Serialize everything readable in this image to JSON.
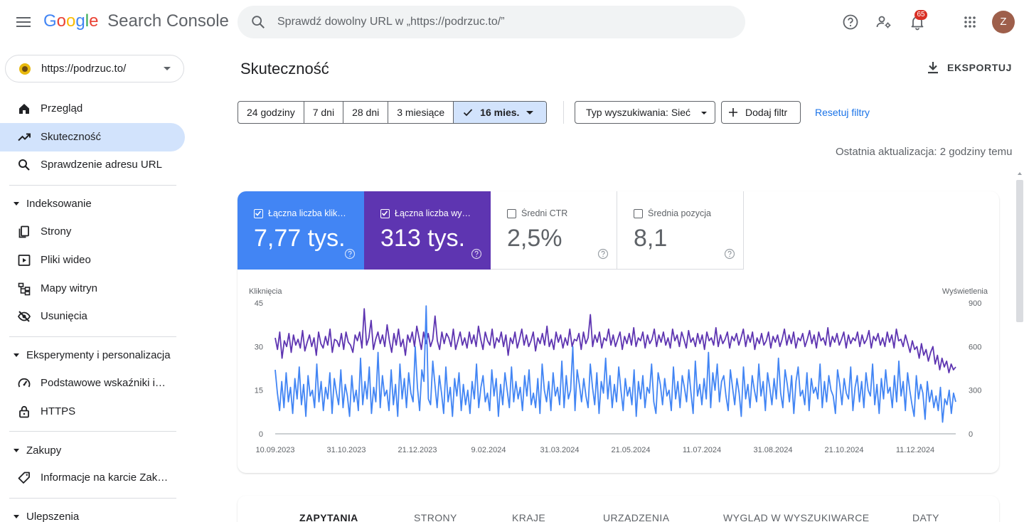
{
  "header": {
    "brand": [
      "G",
      "o",
      "o",
      "g",
      "l",
      "e"
    ],
    "brand_colors": [
      "#4285f4",
      "#ea4335",
      "#fbbc05",
      "#4285f4",
      "#34a853",
      "#ea4335"
    ],
    "product": "Search Console",
    "search_placeholder": "Sprawdź dowolny URL w „https://podrzuc.to/”",
    "notification_count": "65",
    "avatar_initial": "Z",
    "icons": [
      "menu-icon",
      "search-icon",
      "help-icon",
      "manage-users-icon",
      "notifications-icon",
      "apps-grid-icon"
    ]
  },
  "sidebar": {
    "property": "https://podrzuc.to/",
    "items": {
      "overview": "Przegląd",
      "performance": "Skuteczność",
      "url_inspection": "Sprawdzenie adresu URL",
      "indexing": "Indeksowanie",
      "pages": "Strony",
      "videos": "Pliki wideo",
      "sitemaps": "Mapy witryn",
      "removals": "Usunięcia",
      "experience": "Eksperymenty i personalizacja",
      "cwv": "Podstawowe wskaźniki internetowe",
      "https": "HTTPS",
      "shopping": "Zakupy",
      "merchant": "Informacje na karcie Zakupów",
      "enhancements": "Ulepszenia"
    }
  },
  "main": {
    "title": "Skuteczność",
    "export_label": "EKSPORTUJ",
    "date_ranges": [
      "24 godziny",
      "7 dni",
      "28 dni",
      "3 miesiące"
    ],
    "selected_range": "16 mies.",
    "search_type": "Typ wyszukiwania: Sieć",
    "add_filter": "Dodaj filtr",
    "reset_filters": "Resetuj filtry",
    "last_update": "Ostatnia aktualizacja: 2 godziny temu",
    "metrics": [
      {
        "label": "Łączna liczba kliknięć",
        "value": "7,77 tys.",
        "color": "#4285f4",
        "checked": true
      },
      {
        "label": "Łączna liczba wyświetleń",
        "value": "313 tys.",
        "color": "#5e35b1",
        "checked": true
      },
      {
        "label": "Średni CTR",
        "value": "2,5%",
        "color": "#ffffff",
        "checked": false
      },
      {
        "label": "Średnia pozycja",
        "value": "8,1",
        "color": "#ffffff",
        "checked": false
      }
    ],
    "tabs": [
      "ZAPYTANIA",
      "STRONY",
      "KRAJE",
      "URZĄDZENIA",
      "WYGLĄD W WYSZUKIWARCE",
      "DATY"
    ],
    "active_tab": "ZAPYTANIA"
  },
  "chart_data": {
    "type": "line",
    "left_axis_title": "Kliknięcia",
    "right_axis_title": "Wyświetlenia",
    "left_ticks": [
      "45",
      "30",
      "15",
      "0"
    ],
    "right_ticks": [
      "900",
      "600",
      "300",
      "0"
    ],
    "ylim_left": [
      0,
      45
    ],
    "ylim_right": [
      0,
      900
    ],
    "x_labels": [
      "10.09.2023",
      "31.10.2023",
      "21.12.2023",
      "9.02.2024",
      "31.03.2024",
      "21.05.2024",
      "11.07.2024",
      "31.08.2024",
      "21.10.2024",
      "11.12.2024"
    ],
    "series": [
      {
        "name": "Kliknięcia",
        "axis": "left",
        "color": "#4285f4",
        "values": [
          22,
          14,
          8,
          18,
          9,
          21,
          11,
          16,
          7,
          19,
          12,
          23,
          10,
          17,
          6,
          20,
          13,
          15,
          9,
          24,
          11,
          18,
          8,
          16,
          12,
          21,
          7,
          19,
          14,
          10,
          22,
          9,
          17,
          13,
          6,
          20,
          11,
          15,
          8,
          26,
          10,
          18,
          12,
          23,
          7,
          16,
          11,
          28,
          9,
          20,
          13,
          15,
          8,
          22,
          10,
          17,
          6,
          24,
          12,
          19,
          9,
          21,
          14,
          11,
          30,
          16,
          8,
          22,
          18,
          44,
          12,
          10,
          25,
          17,
          9,
          20,
          14,
          7,
          23,
          11,
          16,
          6,
          19,
          13,
          21,
          8,
          17,
          10,
          15,
          7,
          18,
          12,
          24,
          9,
          16,
          20,
          11,
          14,
          8,
          22,
          13,
          19,
          6,
          17,
          10,
          21,
          15,
          9,
          23,
          11,
          18,
          12,
          16,
          8,
          20,
          13,
          22,
          10,
          14,
          9,
          19,
          7,
          24,
          15,
          11,
          18,
          8,
          21,
          13,
          16,
          10,
          25,
          9,
          20,
          12,
          15,
          30,
          8,
          22,
          17,
          11,
          19,
          13,
          9,
          24,
          16,
          10,
          21,
          7,
          18,
          14,
          26,
          12,
          20,
          9,
          17,
          11,
          23,
          15,
          8,
          19,
          13,
          16,
          10,
          22,
          6,
          18,
          12,
          20,
          9,
          16,
          14,
          24,
          11,
          7,
          21,
          17,
          10,
          19,
          13,
          15,
          8,
          23,
          12,
          18,
          9,
          20,
          16,
          11,
          22,
          14,
          7,
          25,
          13,
          17,
          10,
          19,
          12,
          28,
          9,
          21,
          15,
          24,
          11,
          18,
          20,
          13,
          8,
          22,
          16,
          10,
          19,
          14,
          6,
          23,
          12,
          17,
          9,
          20,
          15,
          11,
          24,
          13,
          18,
          8,
          21,
          16,
          10,
          19,
          12,
          26,
          14,
          9,
          22,
          17,
          11,
          20,
          7,
          18,
          23,
          13,
          15,
          10,
          21,
          8,
          19,
          14,
          16,
          12,
          24,
          9,
          18,
          11,
          20,
          15,
          13,
          7,
          22,
          17,
          10,
          19,
          14,
          12,
          23,
          8,
          16,
          20,
          11,
          18,
          9,
          21,
          15,
          13,
          24,
          10,
          17,
          7,
          19,
          12,
          22,
          14,
          16,
          9,
          20,
          11,
          25,
          13,
          18,
          8,
          21,
          15,
          10,
          6,
          20,
          12,
          17,
          14,
          5,
          18,
          11,
          15,
          9,
          13,
          8,
          16,
          4,
          12,
          10,
          15,
          7,
          14,
          11
        ]
      },
      {
        "name": "Wyświetlenia",
        "axis": "right",
        "color": "#5e35b1",
        "values": [
          660,
          580,
          700,
          520,
          640,
          600,
          690,
          560,
          680,
          610,
          650,
          590,
          710,
          570,
          630,
          680,
          600,
          660,
          540,
          700,
          620,
          590,
          670,
          610,
          720,
          560,
          650,
          640,
          600,
          690,
          580,
          700,
          630,
          610,
          560,
          680,
          640,
          700,
          590,
          860,
          610,
          660,
          780,
          580,
          650,
          700,
          620,
          680,
          600,
          750,
          640,
          560,
          690,
          610,
          720,
          600,
          650,
          540,
          680,
          630,
          700,
          600,
          740,
          660,
          580,
          700,
          620,
          690,
          600,
          650,
          810,
          640,
          580,
          700,
          620,
          690,
          660,
          600,
          720,
          580,
          640,
          700,
          610,
          660,
          590,
          700,
          620,
          680,
          600,
          740,
          650,
          580,
          700,
          640,
          610,
          720,
          590,
          660,
          630,
          700,
          600,
          680,
          540,
          660,
          620,
          700,
          590,
          650,
          720,
          610,
          680,
          600,
          640,
          700,
          570,
          660,
          620,
          690,
          610,
          740,
          600,
          650,
          580,
          700,
          630,
          680,
          590,
          660,
          610,
          720,
          600,
          650,
          640,
          690,
          580,
          700,
          620,
          660,
          820,
          600,
          680,
          630,
          700,
          590,
          660,
          640,
          720,
          610,
          680,
          600,
          650,
          700,
          580,
          670,
          620,
          690,
          610,
          730,
          600,
          660,
          640,
          700,
          590,
          680,
          620,
          650,
          720,
          600,
          680,
          630,
          700,
          610,
          660,
          590,
          720,
          640,
          680,
          600,
          700,
          650,
          590,
          710,
          630,
          660,
          600,
          690,
          620,
          680,
          580,
          700,
          640,
          660,
          610,
          730,
          600,
          680,
          620,
          650,
          700,
          590,
          670,
          640,
          690,
          610,
          660,
          720,
          600,
          680,
          630,
          700,
          580,
          660,
          620,
          690,
          610,
          640,
          700,
          590,
          670,
          630,
          680,
          600,
          650,
          720,
          610,
          680,
          620,
          700,
          590,
          660,
          640,
          690,
          600,
          650,
          710,
          620,
          680,
          590,
          700,
          640,
          660,
          610,
          730,
          600,
          670,
          630,
          690,
          610,
          650,
          700,
          590,
          680,
          620,
          660,
          640,
          700,
          600,
          680,
          620,
          650,
          710,
          590,
          670,
          640,
          690,
          610,
          660,
          600,
          700,
          630,
          680,
          590,
          720,
          640,
          650,
          600,
          680,
          620,
          560,
          640,
          580,
          600,
          520,
          620,
          540,
          580,
          500,
          560,
          600,
          480,
          540,
          440,
          520,
          460,
          500,
          420,
          480,
          440,
          460
        ]
      }
    ]
  }
}
